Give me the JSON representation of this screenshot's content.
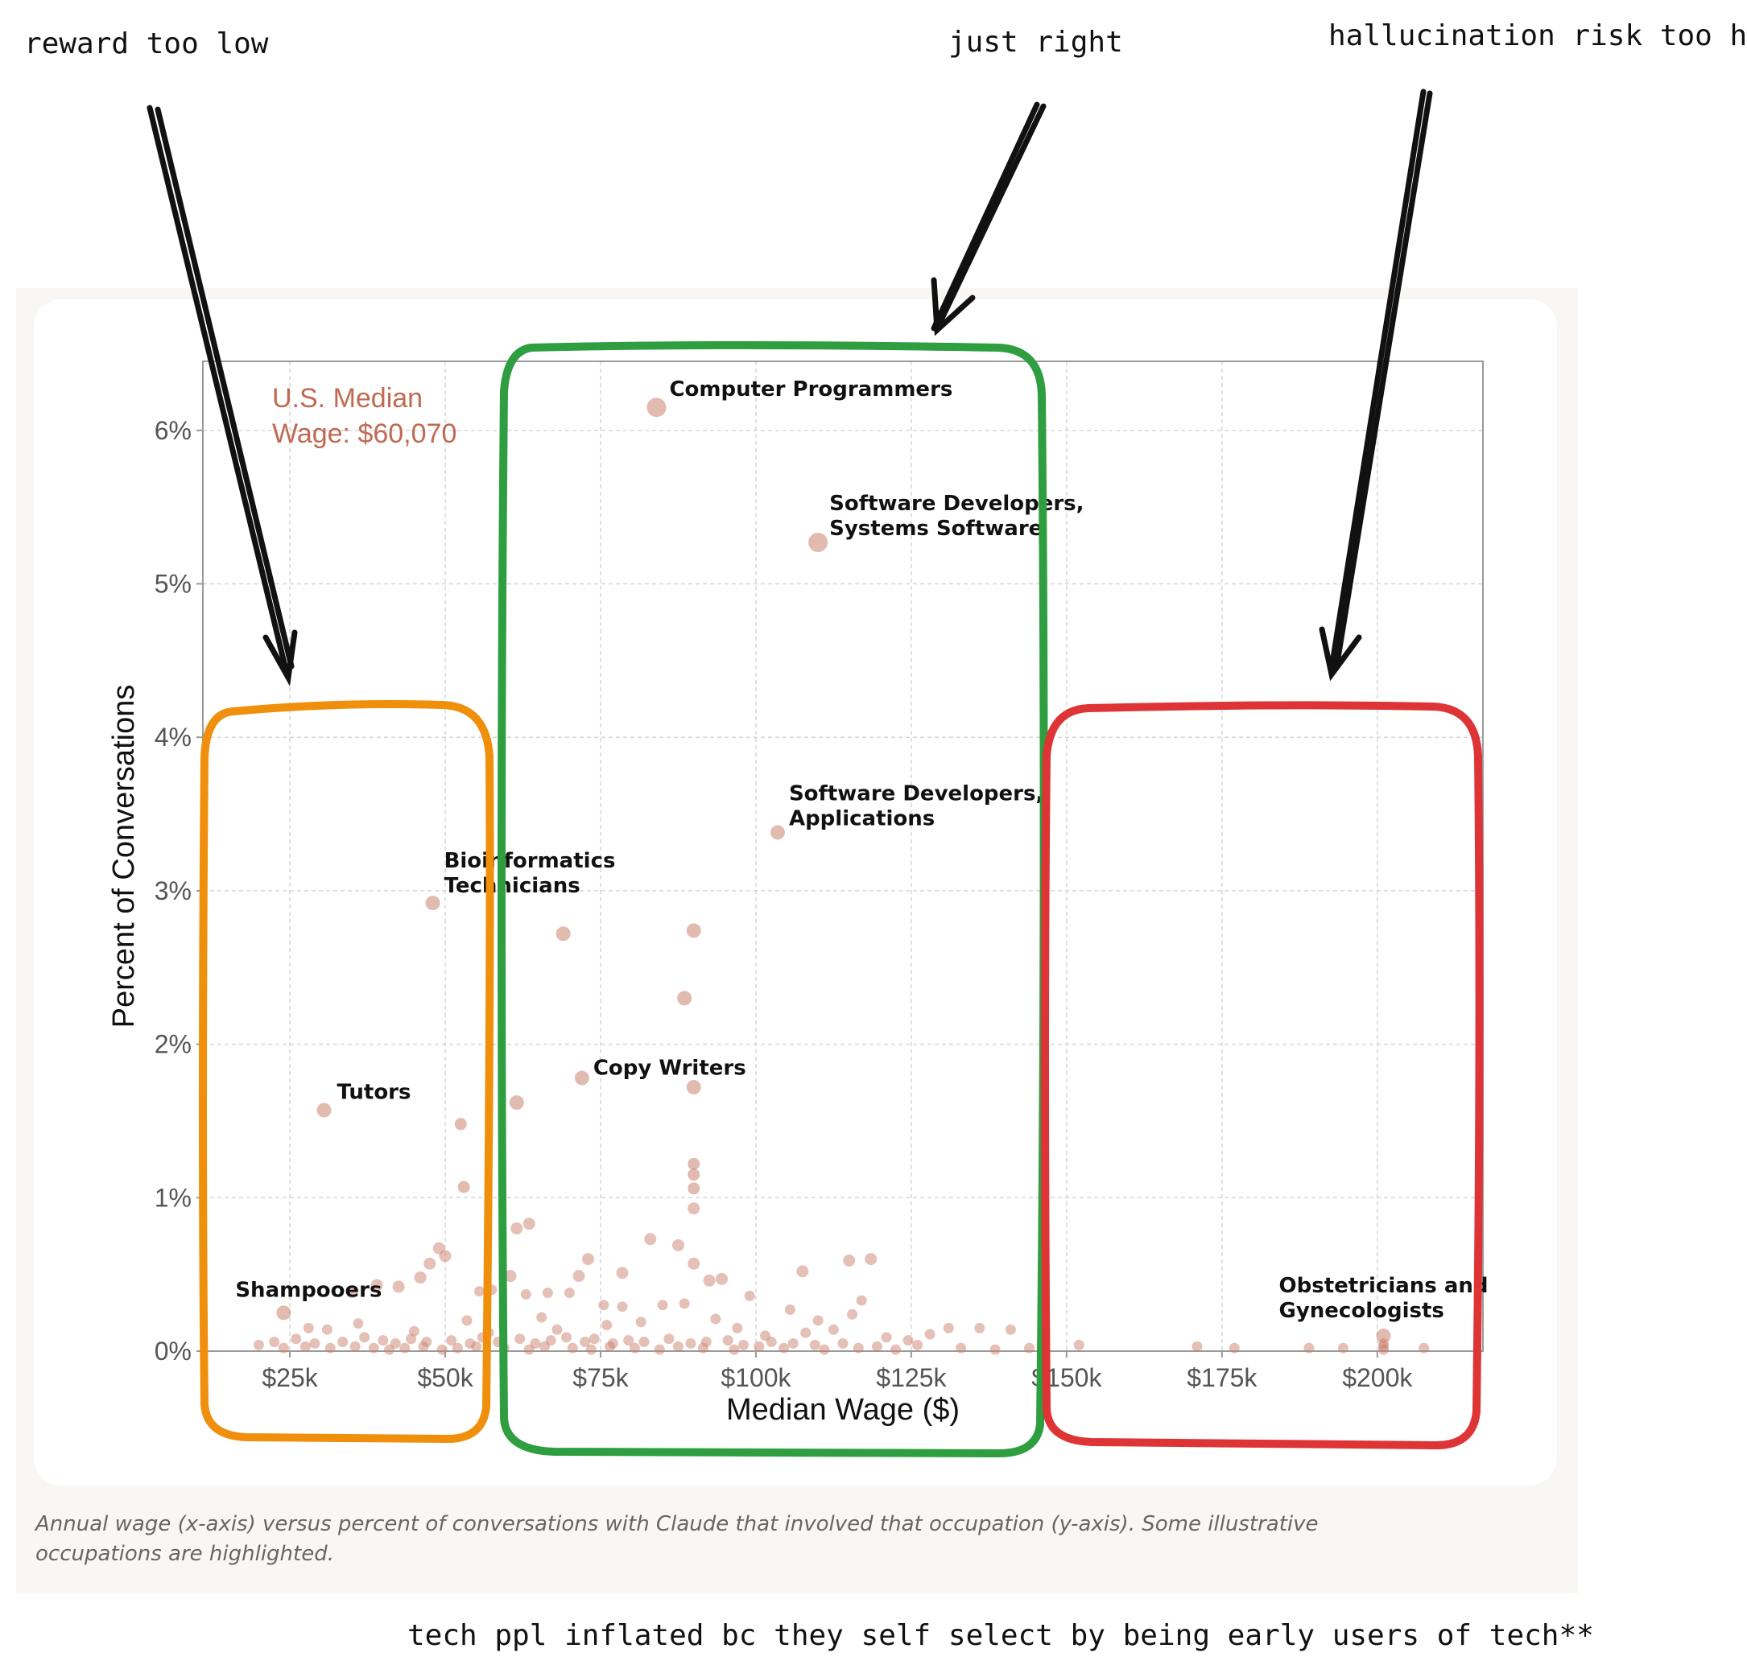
{
  "notes": {
    "left": "reward too low",
    "middle": "just right",
    "right": "hallucination risk too high",
    "bottom": "tech ppl inflated bc they self select by being early users of tech**"
  },
  "colors": {
    "panel_bg": "#f8f7f3",
    "card_bg": "#ffffff",
    "point": "#c9826f",
    "median_text": "#c06a52",
    "box_left": "#ef8f0b",
    "box_middle": "#2e9e40",
    "box_right": "#de3435"
  },
  "caption": {
    "line1": "Annual wage (x-axis) versus percent of conversations with Claude that involved that occupation (y-axis). Some illustrative",
    "line2": "occupations are highlighted."
  },
  "chart_data": {
    "type": "scatter",
    "xlabel": "Median Wage ($)",
    "ylabel": "Percent of Conversations",
    "xlim": [
      11000,
      217000
    ],
    "ylim": [
      0,
      6.45
    ],
    "x_ticks": [
      {
        "value": 25000,
        "label": "$25k"
      },
      {
        "value": 50000,
        "label": "$50k"
      },
      {
        "value": 75000,
        "label": "$75k"
      },
      {
        "value": 100000,
        "label": "$100k"
      },
      {
        "value": 125000,
        "label": "$125k"
      },
      {
        "value": 150000,
        "label": "$150k"
      },
      {
        "value": 175000,
        "label": "$175k"
      },
      {
        "value": 200000,
        "label": "$200k"
      }
    ],
    "y_ticks": [
      {
        "value": 0,
        "label": "0%"
      },
      {
        "value": 1,
        "label": "1%"
      },
      {
        "value": 2,
        "label": "2%"
      },
      {
        "value": 3,
        "label": "3%"
      },
      {
        "value": 4,
        "label": "4%"
      },
      {
        "value": 5,
        "label": "5%"
      },
      {
        "value": 6,
        "label": "6%"
      }
    ],
    "grid": true,
    "median_annotation": {
      "line1": "U.S. Median",
      "line2": "Wage: $60,070"
    },
    "highlighted": [
      {
        "label1": "Computer Programmers",
        "label2": "",
        "x": 84000,
        "y": 6.15
      },
      {
        "label1": "Software Developers,",
        "label2": "Systems Software",
        "x": 110000,
        "y": 5.27
      },
      {
        "label1": "Software Developers,",
        "label2": "Applications",
        "x": 103500,
        "y": 3.38
      },
      {
        "label1": "Bioinformatics",
        "label2": "Technicians",
        "x": 48000,
        "y": 2.92
      },
      {
        "label1": "Tutors",
        "label2": "",
        "x": 30500,
        "y": 1.57
      },
      {
        "label1": "Copy Writers",
        "label2": "",
        "x": 72000,
        "y": 1.78
      },
      {
        "label1": "Shampooers",
        "label2": "",
        "x": 24000,
        "y": 0.25
      },
      {
        "label1": "Obstetricians and",
        "label2": "Gynecologists",
        "x": 201000,
        "y": 0.1
      }
    ],
    "points": [
      [
        69000,
        2.72
      ],
      [
        90000,
        2.74
      ],
      [
        88500,
        2.3
      ],
      [
        90000,
        1.72
      ],
      [
        61500,
        1.62
      ],
      [
        52500,
        1.48
      ],
      [
        53000,
        1.07
      ],
      [
        90000,
        1.22
      ],
      [
        90000,
        1.15
      ],
      [
        90000,
        1.06
      ],
      [
        90000,
        0.93
      ],
      [
        61500,
        0.8
      ],
      [
        63500,
        0.83
      ],
      [
        83000,
        0.73
      ],
      [
        87500,
        0.69
      ],
      [
        49000,
        0.67
      ],
      [
        50000,
        0.62
      ],
      [
        47500,
        0.57
      ],
      [
        90000,
        0.57
      ],
      [
        73000,
        0.6
      ],
      [
        107500,
        0.52
      ],
      [
        115000,
        0.59
      ],
      [
        118500,
        0.6
      ],
      [
        78500,
        0.51
      ],
      [
        71500,
        0.49
      ],
      [
        92500,
        0.46
      ],
      [
        94500,
        0.47
      ],
      [
        60500,
        0.49
      ],
      [
        46000,
        0.48
      ],
      [
        39000,
        0.43
      ],
      [
        42500,
        0.42
      ],
      [
        35000,
        0.38
      ],
      [
        55500,
        0.39
      ],
      [
        57500,
        0.4
      ],
      [
        63000,
        0.37
      ],
      [
        66500,
        0.38
      ],
      [
        70000,
        0.38
      ],
      [
        75500,
        0.3
      ],
      [
        78500,
        0.29
      ],
      [
        88500,
        0.31
      ],
      [
        85000,
        0.3
      ],
      [
        99000,
        0.36
      ],
      [
        105500,
        0.27
      ],
      [
        110000,
        0.2
      ],
      [
        117000,
        0.33
      ],
      [
        115500,
        0.24
      ],
      [
        131000,
        0.15
      ],
      [
        141000,
        0.14
      ],
      [
        136000,
        0.15
      ],
      [
        128000,
        0.11
      ],
      [
        152000,
        0.04
      ],
      [
        171000,
        0.03
      ],
      [
        177000,
        0.02
      ],
      [
        189000,
        0.02
      ],
      [
        207500,
        0.02
      ],
      [
        201000,
        0.05
      ],
      [
        201000,
        0.03
      ],
      [
        201000,
        0.01
      ],
      [
        194500,
        0.02
      ],
      [
        31000,
        0.14
      ],
      [
        36000,
        0.18
      ],
      [
        28000,
        0.15
      ],
      [
        45000,
        0.13
      ],
      [
        53500,
        0.2
      ],
      [
        57000,
        0.12
      ],
      [
        65500,
        0.22
      ],
      [
        68000,
        0.14
      ],
      [
        76000,
        0.17
      ],
      [
        81500,
        0.19
      ],
      [
        93500,
        0.21
      ],
      [
        97000,
        0.15
      ],
      [
        101500,
        0.1
      ],
      [
        108000,
        0.12
      ],
      [
        112500,
        0.14
      ],
      [
        121000,
        0.09
      ],
      [
        124500,
        0.07
      ],
      [
        20000,
        0.04
      ],
      [
        22500,
        0.06
      ],
      [
        26000,
        0.08
      ],
      [
        29000,
        0.05
      ],
      [
        33500,
        0.06
      ],
      [
        37000,
        0.09
      ],
      [
        40000,
        0.07
      ],
      [
        42000,
        0.05
      ],
      [
        44500,
        0.08
      ],
      [
        47000,
        0.06
      ],
      [
        51000,
        0.07
      ],
      [
        54000,
        0.05
      ],
      [
        56000,
        0.09
      ],
      [
        58500,
        0.06
      ],
      [
        62000,
        0.08
      ],
      [
        64500,
        0.05
      ],
      [
        67000,
        0.07
      ],
      [
        69500,
        0.09
      ],
      [
        72500,
        0.06
      ],
      [
        74000,
        0.08
      ],
      [
        77000,
        0.05
      ],
      [
        79500,
        0.07
      ],
      [
        82000,
        0.06
      ],
      [
        86000,
        0.08
      ],
      [
        89500,
        0.05
      ],
      [
        92000,
        0.06
      ],
      [
        95500,
        0.07
      ],
      [
        98000,
        0.04
      ],
      [
        102500,
        0.06
      ],
      [
        106000,
        0.05
      ],
      [
        109500,
        0.04
      ],
      [
        114000,
        0.05
      ],
      [
        119500,
        0.03
      ],
      [
        126000,
        0.04
      ],
      [
        24000,
        0.02
      ],
      [
        27500,
        0.03
      ],
      [
        31500,
        0.02
      ],
      [
        35500,
        0.03
      ],
      [
        38500,
        0.02
      ],
      [
        41000,
        0.01
      ],
      [
        43500,
        0.02
      ],
      [
        46500,
        0.03
      ],
      [
        49500,
        0.01
      ],
      [
        52000,
        0.02
      ],
      [
        55000,
        0.03
      ],
      [
        59500,
        0.02
      ],
      [
        63500,
        0.01
      ],
      [
        66000,
        0.03
      ],
      [
        70500,
        0.02
      ],
      [
        73500,
        0.01
      ],
      [
        76500,
        0.03
      ],
      [
        80500,
        0.02
      ],
      [
        84500,
        0.01
      ],
      [
        87500,
        0.03
      ],
      [
        91500,
        0.02
      ],
      [
        96500,
        0.01
      ],
      [
        100500,
        0.03
      ],
      [
        104500,
        0.02
      ],
      [
        111000,
        0.01
      ],
      [
        116500,
        0.02
      ],
      [
        122500,
        0.01
      ],
      [
        133000,
        0.02
      ],
      [
        138500,
        0.01
      ],
      [
        144000,
        0.02
      ]
    ]
  }
}
